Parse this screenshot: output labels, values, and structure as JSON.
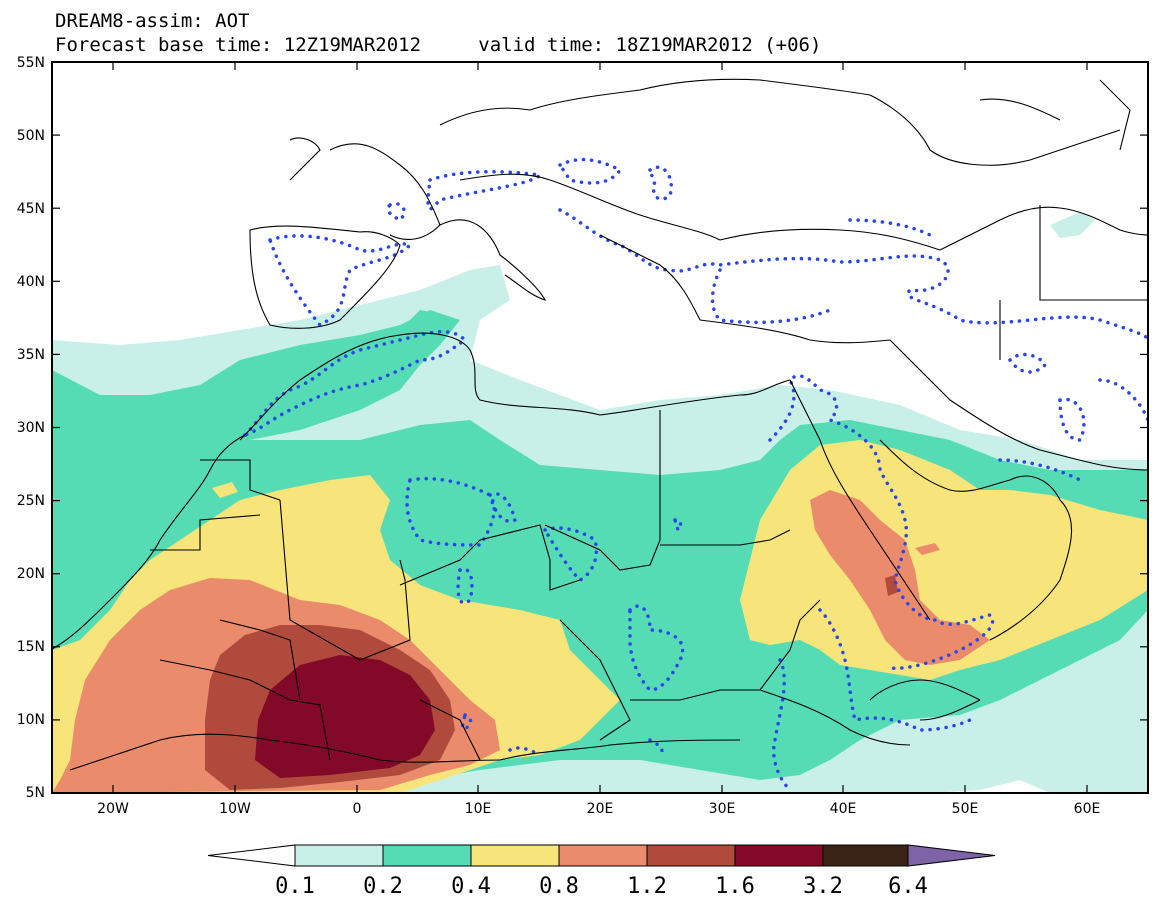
{
  "header": {
    "line1": "DREAM8-assim: AOT",
    "line2_base": "Forecast base time: 12Z19MAR2012",
    "line2_valid": "valid time: 18Z19MAR2012 (+06)"
  },
  "axes": {
    "lat_labels": [
      "55N",
      "50N",
      "45N",
      "40N",
      "35N",
      "30N",
      "25N",
      "20N",
      "15N",
      "10N",
      "5N"
    ],
    "lon_labels": [
      "20W",
      "10W",
      "0",
      "10E",
      "20E",
      "30E",
      "40E",
      "50E",
      "60E"
    ],
    "lon_range": [
      -25,
      65
    ],
    "lat_range": [
      5,
      55
    ]
  },
  "legend": {
    "labels": [
      "0.1",
      "0.2",
      "0.4",
      "0.8",
      "1.2",
      "1.6",
      "3.2",
      "6.4"
    ],
    "colors": [
      "#ffffff",
      "#c8f0e8",
      "#55dcb4",
      "#f7e47a",
      "#ea8c6b",
      "#b04a3c",
      "#820a28",
      "#3a2416",
      "#7f63a8"
    ]
  },
  "colors": {
    "frame": "#000000",
    "coastline": "#000000",
    "dots": "#2a45e8"
  }
}
